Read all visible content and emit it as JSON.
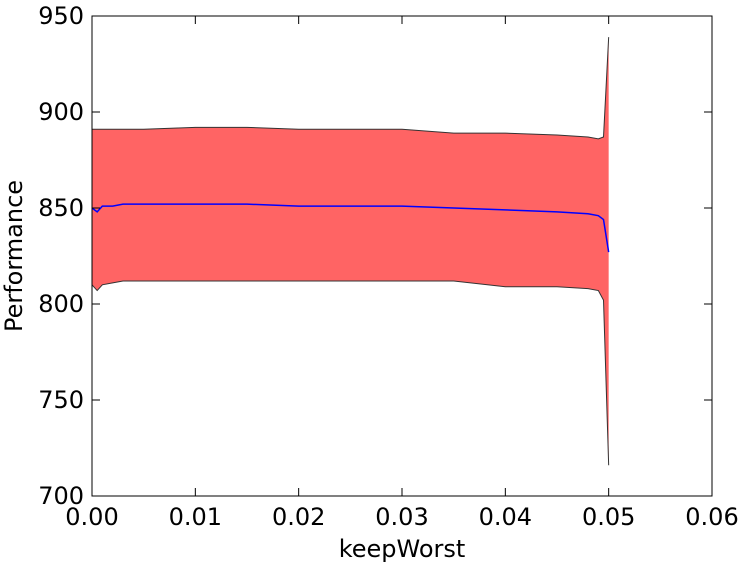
{
  "chart_data": {
    "type": "area",
    "xlabel": "keepWorst",
    "ylabel": "Performance",
    "xlim": [
      0.0,
      0.06
    ],
    "ylim": [
      700,
      950
    ],
    "xticks": [
      "0.00",
      "0.01",
      "0.02",
      "0.03",
      "0.04",
      "0.05",
      "0.06"
    ],
    "yticks": [
      "700",
      "750",
      "800",
      "850",
      "900",
      "950"
    ],
    "grid": false,
    "colors": {
      "band": "#ff6464",
      "band_edge": "#333333",
      "mean_line": "#0000ff"
    },
    "series": [
      {
        "x": [
          0.0,
          0.0005,
          0.001,
          0.002,
          0.003,
          0.005,
          0.01,
          0.015,
          0.02,
          0.025,
          0.03,
          0.035,
          0.04,
          0.045,
          0.048,
          0.049,
          0.0495,
          0.05
        ],
        "mean": [
          850,
          848,
          851,
          851,
          852,
          852,
          852,
          852,
          851,
          851,
          851,
          850,
          849,
          848,
          847,
          846,
          844,
          827
        ],
        "upper": [
          891,
          891,
          891,
          891,
          891,
          891,
          892,
          892,
          891,
          891,
          891,
          889,
          889,
          888,
          887,
          886,
          887,
          939
        ],
        "lower": [
          810,
          807,
          810,
          811,
          812,
          812,
          812,
          812,
          812,
          812,
          812,
          812,
          809,
          809,
          808,
          807,
          802,
          716
        ]
      }
    ]
  }
}
